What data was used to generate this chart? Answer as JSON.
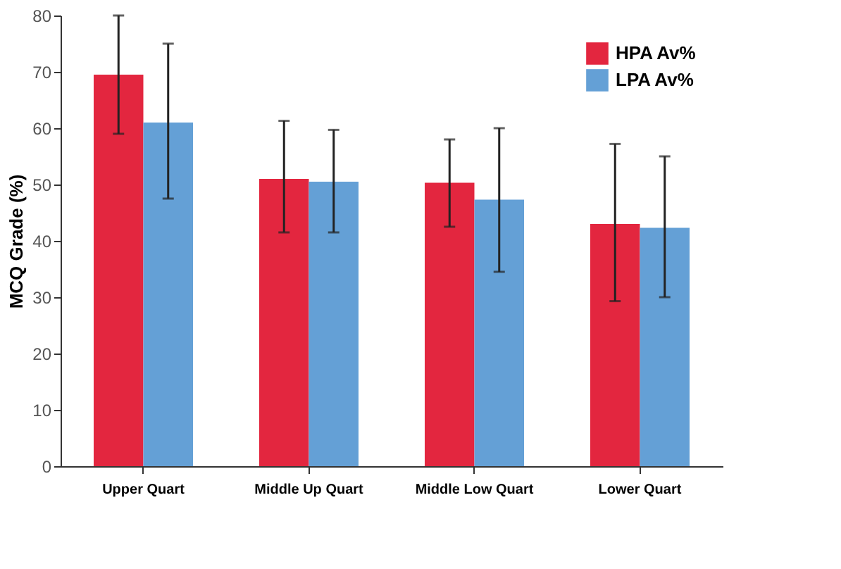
{
  "chart_data": {
    "type": "bar",
    "ylabel": "MCQ Grade (%)",
    "categories": [
      "Upper Quart",
      "Middle Up Quart",
      "Middle Low Quart",
      "Lower Quart"
    ],
    "series": [
      {
        "name": "HPA Av%",
        "color": "#e3263f",
        "values": [
          69.5,
          51,
          50.3,
          43
        ],
        "errors": [
          [
            59,
            80
          ],
          [
            41.5,
            61.3
          ],
          [
            42.5,
            58
          ],
          [
            29.3,
            57.2
          ]
        ]
      },
      {
        "name": "LPA Av%",
        "color": "#64a0d6",
        "values": [
          61,
          50.5,
          47.3,
          42.3
        ],
        "errors": [
          [
            47.5,
            75
          ],
          [
            41.5,
            59.7
          ],
          [
            34.5,
            60
          ],
          [
            30,
            55
          ]
        ]
      }
    ],
    "ylim": [
      0,
      80
    ],
    "yticks": [
      0,
      10,
      20,
      30,
      40,
      50,
      60,
      70,
      80
    ],
    "grid": false,
    "legend": "top right"
  }
}
